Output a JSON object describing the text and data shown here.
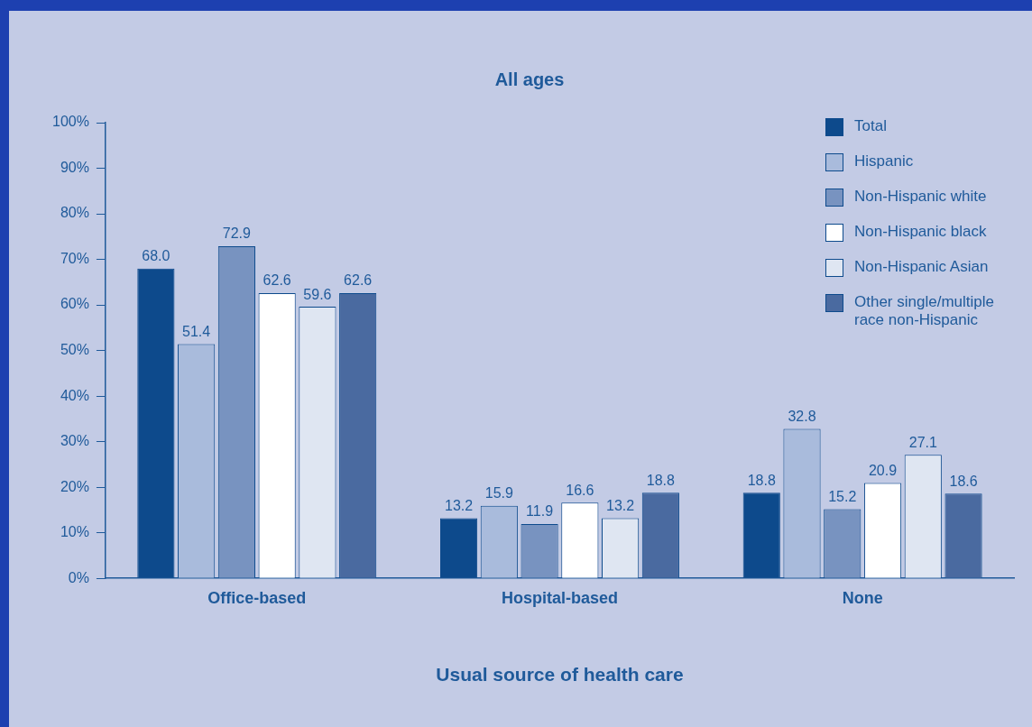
{
  "chart_data": {
    "type": "bar",
    "title": "All ages",
    "xlabel": "Usual source of health care",
    "categories": [
      "Office-based",
      "Hospital-based",
      "None"
    ],
    "series": [
      {
        "name": "Total",
        "color": "#0d4a8c",
        "values": [
          68.0,
          13.2,
          18.8
        ],
        "value_labels": [
          "68.0",
          "13.2",
          "18.8"
        ]
      },
      {
        "name": "Hispanic",
        "color": "#a9bbdc",
        "values": [
          51.4,
          15.9,
          32.8
        ],
        "value_labels": [
          "51.4",
          "15.9",
          "32.8"
        ]
      },
      {
        "name": "Non-Hispanic white",
        "color": "#7893c0",
        "values": [
          72.9,
          11.9,
          15.2
        ],
        "value_labels": [
          "72.9",
          "11.9",
          "15.2"
        ]
      },
      {
        "name": "Non-Hispanic black",
        "color": "#ffffff",
        "values": [
          62.6,
          16.6,
          20.9
        ],
        "value_labels": [
          "62.6",
          "16.6",
          "20.9"
        ]
      },
      {
        "name": "Non-Hispanic Asian",
        "color": "#dfe6f2",
        "values": [
          59.6,
          13.2,
          27.1
        ],
        "value_labels": [
          "59.6",
          "13.2",
          "27.1"
        ]
      },
      {
        "name": "Other single/multiple race non-Hispanic",
        "color": "#4a6aa0",
        "values": [
          62.6,
          18.8,
          18.6
        ],
        "value_labels": [
          "62.6",
          "18.8",
          "18.6"
        ]
      }
    ],
    "ylim": [
      0,
      100
    ],
    "yticks": [
      {
        "value": 0,
        "label": "0%"
      },
      {
        "value": 10,
        "label": "10%"
      },
      {
        "value": 20,
        "label": "20%"
      },
      {
        "value": 30,
        "label": "30%"
      },
      {
        "value": 40,
        "label": "40%"
      },
      {
        "value": 50,
        "label": "50%"
      },
      {
        "value": 60,
        "label": "60%"
      },
      {
        "value": 70,
        "label": "70%"
      },
      {
        "value": 80,
        "label": "80%"
      },
      {
        "value": 90,
        "label": "90%"
      },
      {
        "value": 100,
        "label": "100%"
      }
    ],
    "legend": "top right"
  }
}
